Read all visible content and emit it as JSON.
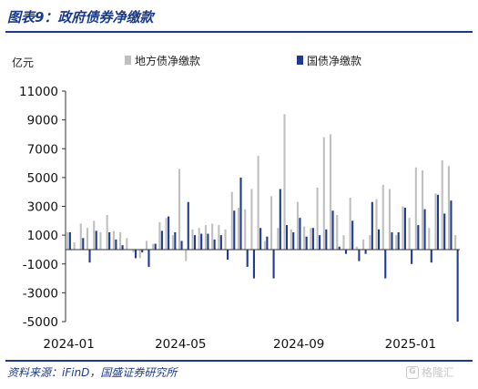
{
  "header": {
    "title": "图表9：政府债券净缴款"
  },
  "footer": {
    "source": "资料来源：iFinD，国盛证券研究所",
    "watermark": "格隆汇"
  },
  "colors": {
    "local": "#bfbfbf",
    "national": "#1f3a93",
    "accent": "#1a3a8a"
  },
  "chart_data": {
    "type": "bar",
    "unit_label": "亿元",
    "xlabel": "",
    "ylabel": "亿元",
    "ylim": [
      -5000,
      11000
    ],
    "yticks": [
      11000,
      9000,
      7000,
      5000,
      3000,
      1000,
      -1000,
      -3000,
      -5000
    ],
    "xtick_labels": [
      {
        "label": "2024-01",
        "index": 0
      },
      {
        "label": "2024-05",
        "index": 17
      },
      {
        "label": "2024-09",
        "index": 35
      },
      {
        "label": "2025-01",
        "index": 52
      }
    ],
    "legend_position": "top",
    "series": [
      {
        "name": "地方债净缴款",
        "color": "#bfbfbf",
        "values": [
          1200,
          500,
          1800,
          1500,
          2000,
          1200,
          2400,
          1300,
          1200,
          800,
          -200,
          -600,
          600,
          400,
          1900,
          2200,
          1000,
          5600,
          -800,
          1400,
          1500,
          1700,
          1800,
          1700,
          1400,
          4000,
          2900,
          2800,
          4200,
          6500,
          600,
          3700,
          1500,
          9400,
          1400,
          3300,
          1600,
          1500,
          4300,
          7800,
          8000,
          2400,
          1000,
          3600,
          200,
          700,
          1000,
          3500,
          4500,
          4200,
          1000,
          3000,
          2200,
          5700,
          5500,
          1500,
          3900,
          6200,
          5800,
          1000
        ]
      },
      {
        "name": "国债净缴款",
        "color": "#1f3a93",
        "values": [
          1200,
          0,
          800,
          -900,
          1300,
          0,
          1200,
          700,
          300,
          0,
          -600,
          -200,
          -1200,
          400,
          1300,
          2300,
          1200,
          600,
          3300,
          1000,
          1100,
          1100,
          700,
          1000,
          -700,
          2700,
          5000,
          -1200,
          -2000,
          1500,
          900,
          -2000,
          4200,
          1700,
          1200,
          2200,
          900,
          1500,
          1000,
          1400,
          2700,
          200,
          -300,
          2000,
          -800,
          -300,
          3300,
          1400,
          -2000,
          1200,
          1200,
          2900,
          -1000,
          1700,
          2800,
          -900,
          3800,
          2500,
          3400,
          -5000
        ]
      }
    ]
  }
}
